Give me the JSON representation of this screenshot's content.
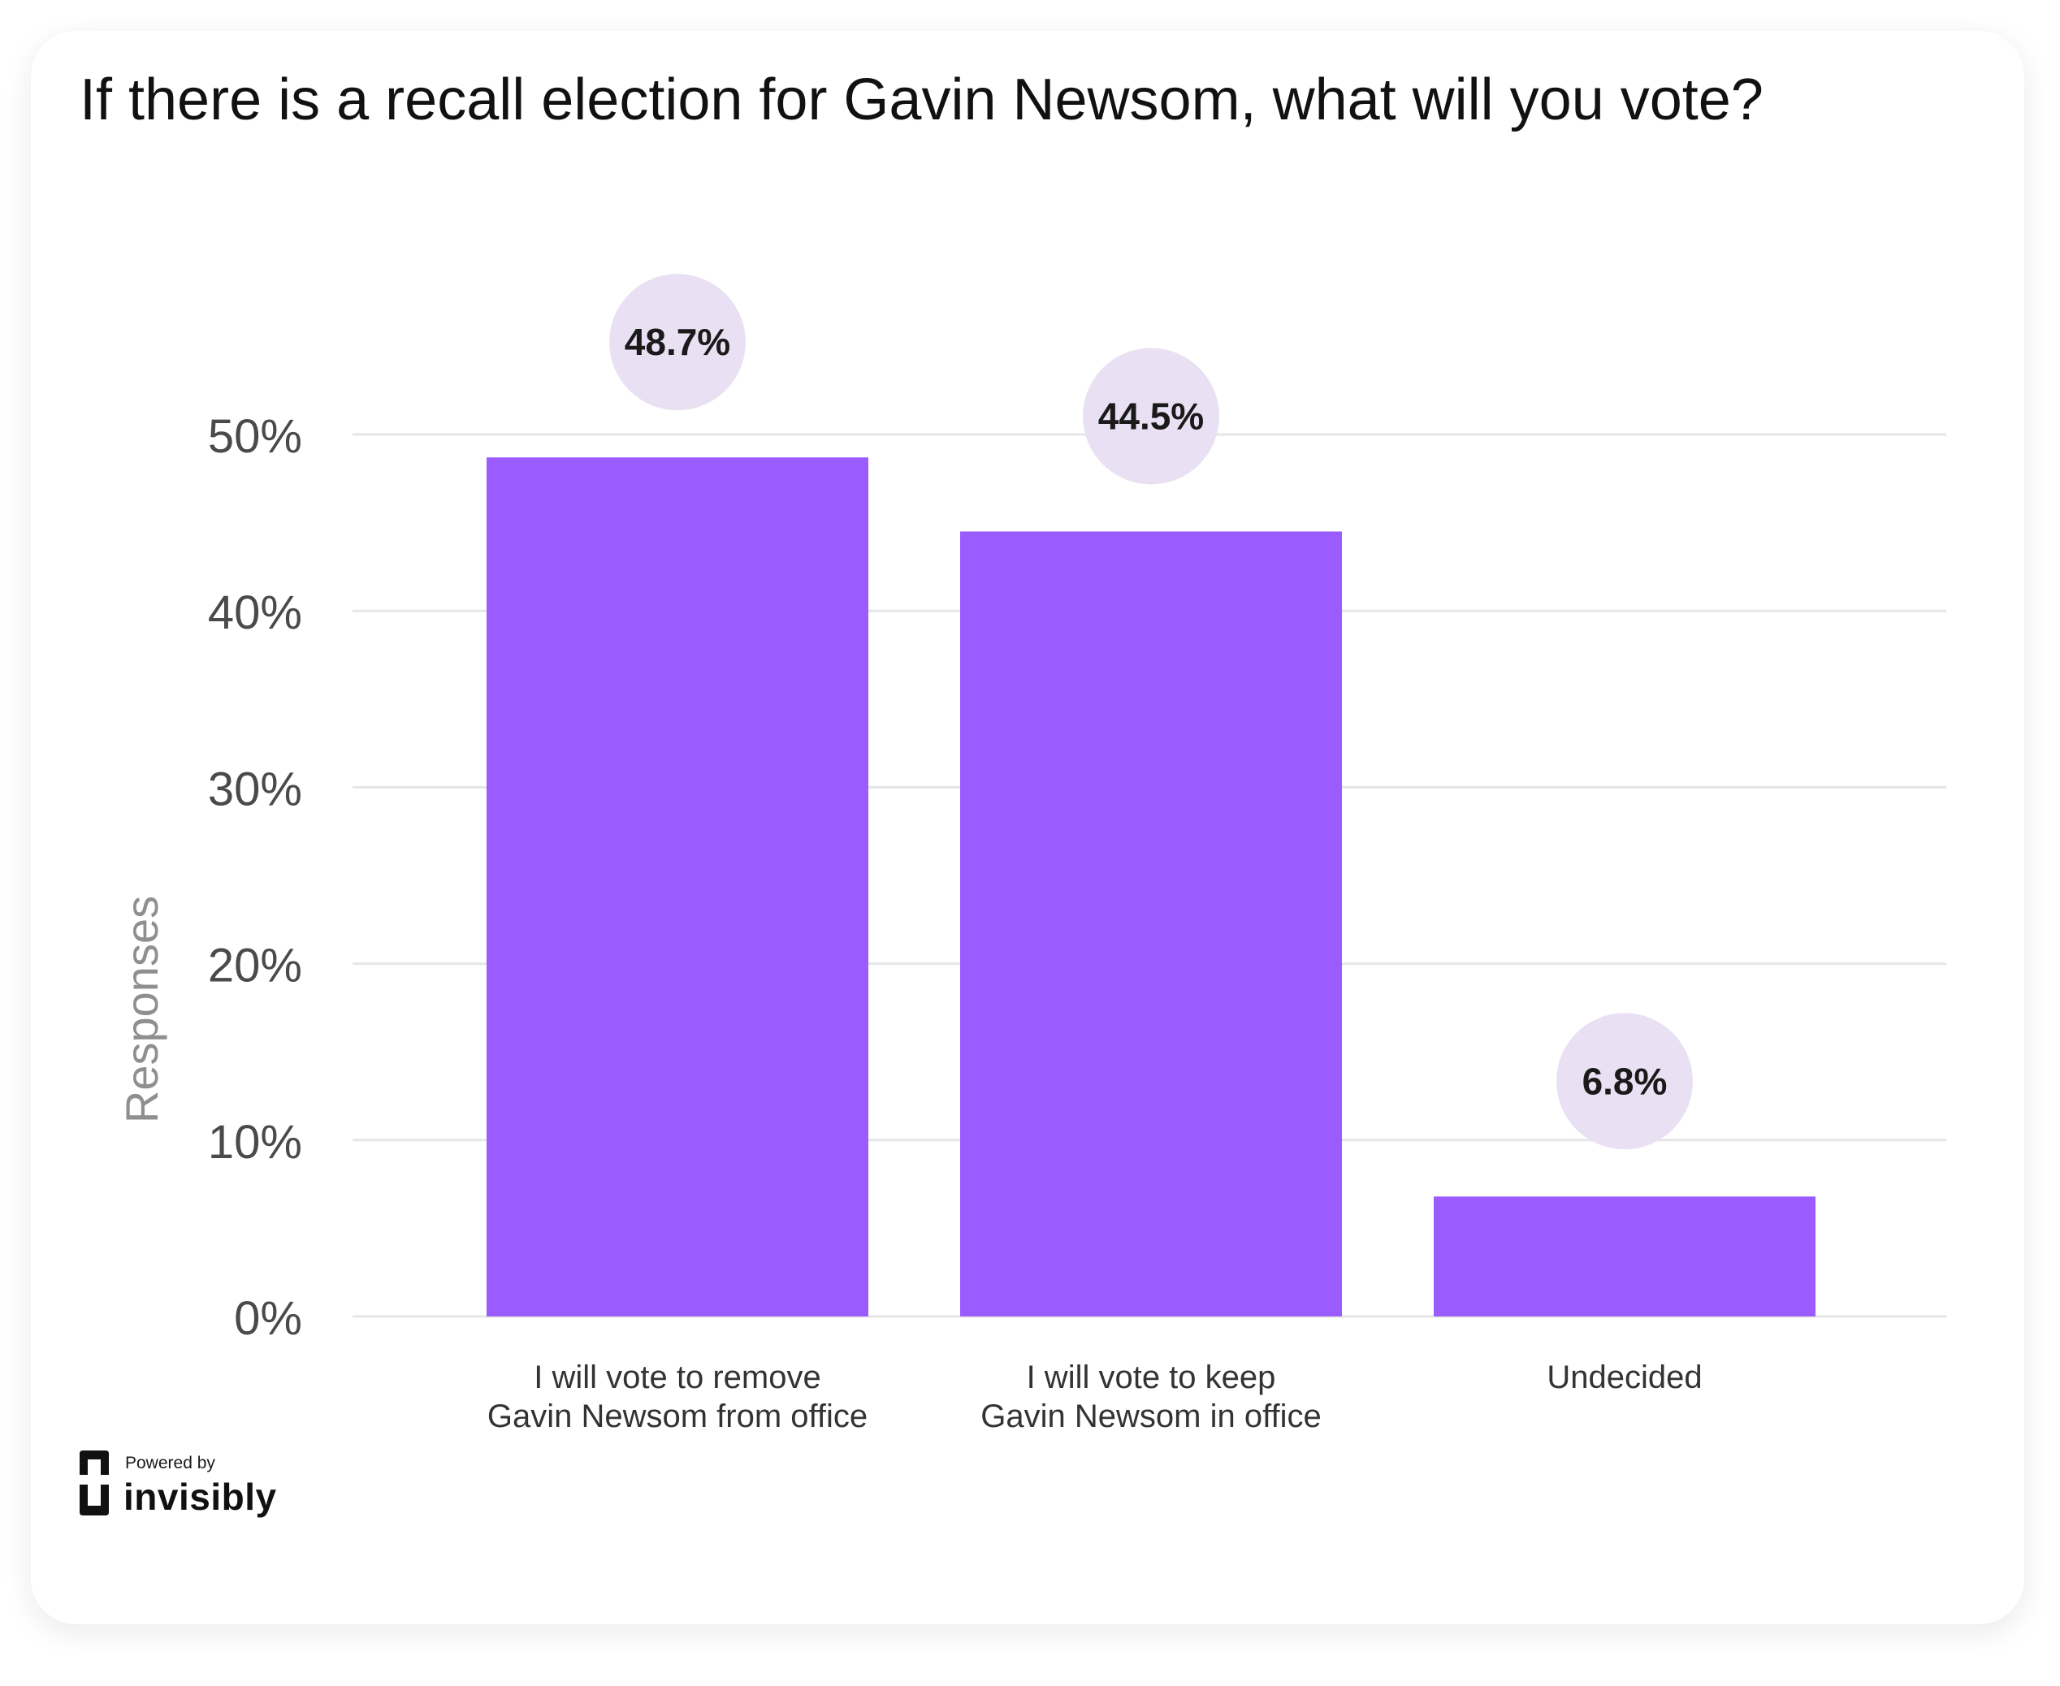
{
  "title": "If there is a recall election for Gavin Newsom, what will you vote?",
  "colors": {
    "bar": "#9b5cff",
    "bubble": "#e9e1f3",
    "grid": "#e6e6e6",
    "tick_text": "#4a4a4a",
    "axis_label_text": "#8f8f8f",
    "category_text": "#333333",
    "value_text": "#1a1a1a"
  },
  "branding": {
    "powered_by": "Powered by",
    "name": "invisibly",
    "icon": "invisibly-logo-icon"
  },
  "chart_data": {
    "type": "bar",
    "title": "If there is a recall election for Gavin Newsom, what will you vote?",
    "xlabel": "",
    "ylabel": "Responses",
    "ylim": [
      0,
      50
    ],
    "yticks": [
      0,
      10,
      20,
      30,
      40,
      50
    ],
    "ytick_labels": [
      "0%",
      "10%",
      "20%",
      "30%",
      "40%",
      "50%"
    ],
    "grid": true,
    "legend": "none",
    "categories": [
      [
        "I will vote to remove",
        "Gavin Newsom from office"
      ],
      [
        "I will vote to keep",
        "Gavin Newsom in office"
      ],
      [
        "Undecided"
      ]
    ],
    "values": [
      48.7,
      44.5,
      6.8
    ],
    "value_labels": [
      "48.7%",
      "44.5%",
      "6.8%"
    ]
  }
}
